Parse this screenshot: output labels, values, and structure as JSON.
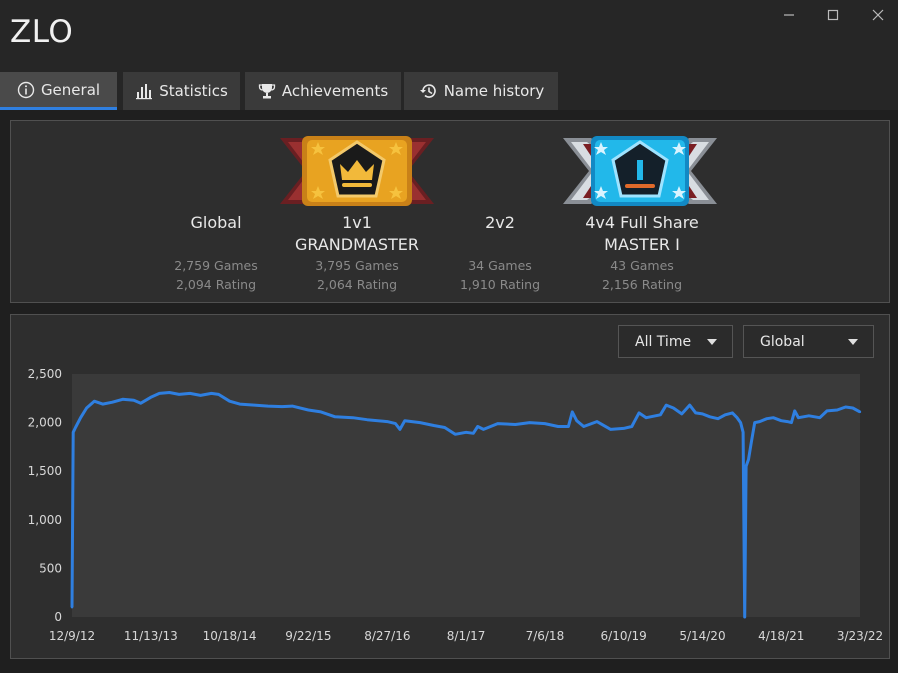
{
  "window": {
    "title": "ZLO"
  },
  "tabs": [
    {
      "label": "General",
      "icon": "info-icon",
      "active": true
    },
    {
      "label": "Statistics",
      "icon": "bar-chart-icon",
      "active": false
    },
    {
      "label": "Achievements",
      "icon": "trophy-icon",
      "active": false
    },
    {
      "label": "Name history",
      "icon": "history-icon",
      "active": false
    }
  ],
  "leaderboards": [
    {
      "name": "Global",
      "rank": "",
      "games": "2,759 Games",
      "rating": "2,094 Rating",
      "badge": ""
    },
    {
      "name": "1v1",
      "rank": "GRANDMASTER",
      "games": "3,795 Games",
      "rating": "2,064 Rating",
      "badge": "grandmaster-badge-icon"
    },
    {
      "name": "2v2",
      "rank": "",
      "games": "34 Games",
      "rating": "1,910 Rating",
      "badge": ""
    },
    {
      "name": "4v4 Full Share",
      "rank": "MASTER I",
      "games": "43 Games",
      "rating": "2,156 Rating",
      "badge": "master-badge-icon"
    }
  ],
  "filters": {
    "time_range": "All Time",
    "leaderboard": "Global"
  },
  "colors": {
    "line": "#2f7fe0",
    "tab_accent": "#2f7fe0",
    "gold": "#e8a321",
    "cyan": "#22b8ea"
  },
  "chart_data": {
    "type": "line",
    "title": "",
    "xlabel": "",
    "ylabel": "",
    "ylim": [
      0,
      2500
    ],
    "yticks": [
      "0",
      "500",
      "1,000",
      "1,500",
      "2,000",
      "2,500"
    ],
    "xticks": [
      "12/9/12",
      "11/13/13",
      "10/18/14",
      "9/22/15",
      "8/27/16",
      "8/1/17",
      "7/6/18",
      "6/10/19",
      "5/14/20",
      "4/18/21",
      "3/23/22"
    ],
    "grid": false,
    "series": [
      {
        "points": [
          [
            "12/9/12",
            100
          ],
          [
            "12/14/12",
            1900
          ],
          [
            "12/24/12",
            1950
          ],
          [
            "1/15/13",
            2050
          ],
          [
            "2/10/13",
            2150
          ],
          [
            "3/15/13",
            2220
          ],
          [
            "4/20/13",
            2190
          ],
          [
            "6/1/13",
            2210
          ],
          [
            "7/15/13",
            2240
          ],
          [
            "9/1/13",
            2230
          ],
          [
            "10/1/13",
            2200
          ],
          [
            "11/13/13",
            2260
          ],
          [
            "12/20/13",
            2300
          ],
          [
            "2/1/14",
            2310
          ],
          [
            "3/15/14",
            2290
          ],
          [
            "5/1/14",
            2300
          ],
          [
            "6/15/14",
            2280
          ],
          [
            "8/1/14",
            2300
          ],
          [
            "9/1/14",
            2290
          ],
          [
            "10/18/14",
            2220
          ],
          [
            "12/1/14",
            2190
          ],
          [
            "2/1/15",
            2180
          ],
          [
            "4/1/15",
            2170
          ],
          [
            "6/1/15",
            2165
          ],
          [
            "7/15/15",
            2170
          ],
          [
            "9/22/15",
            2130
          ],
          [
            "11/15/15",
            2110
          ],
          [
            "1/15/16",
            2060
          ],
          [
            "4/1/16",
            2050
          ],
          [
            "6/1/16",
            2030
          ],
          [
            "8/27/16",
            2010
          ],
          [
            "10/1/16",
            1990
          ],
          [
            "10/20/16",
            1930
          ],
          [
            "11/10/16",
            2020
          ],
          [
            "1/15/17",
            2000
          ],
          [
            "3/15/17",
            1970
          ],
          [
            "5/1/17",
            1950
          ],
          [
            "6/15/17",
            1880
          ],
          [
            "8/1/17",
            1900
          ],
          [
            "9/1/17",
            1890
          ],
          [
            "9/20/17",
            1960
          ],
          [
            "10/15/17",
            1930
          ],
          [
            "12/15/17",
            1990
          ],
          [
            "3/1/18",
            1980
          ],
          [
            "5/1/18",
            2000
          ],
          [
            "7/6/18",
            1990
          ],
          [
            "9/1/18",
            1960
          ],
          [
            "10/15/18",
            1960
          ],
          [
            "11/1/18",
            2110
          ],
          [
            "11/20/18",
            2020
          ],
          [
            "12/20/18",
            1960
          ],
          [
            "2/15/19",
            2010
          ],
          [
            "4/15/19",
            1930
          ],
          [
            "6/10/19",
            1940
          ],
          [
            "7/15/19",
            1960
          ],
          [
            "8/15/19",
            2100
          ],
          [
            "9/15/19",
            2050
          ],
          [
            "11/15/19",
            2080
          ],
          [
            "12/10/19",
            2180
          ],
          [
            "1/10/20",
            2150
          ],
          [
            "2/15/20",
            2090
          ],
          [
            "3/20/20",
            2180
          ],
          [
            "4/15/20",
            2100
          ],
          [
            "5/14/20",
            2090
          ],
          [
            "6/15/20",
            2060
          ],
          [
            "7/20/20",
            2040
          ],
          [
            "8/20/20",
            2080
          ],
          [
            "9/20/20",
            2100
          ],
          [
            "10/10/20",
            2050
          ],
          [
            "10/25/20",
            2000
          ],
          [
            "11/5/20",
            1900
          ],
          [
            "11/12/20",
            0
          ],
          [
            "11/18/20",
            1550
          ],
          [
            "11/28/20",
            1620
          ],
          [
            "12/10/20",
            1790
          ],
          [
            "12/25/20",
            2000
          ],
          [
            "1/15/21",
            2010
          ],
          [
            "2/15/21",
            2040
          ],
          [
            "3/15/21",
            2050
          ],
          [
            "4/18/21",
            2020
          ],
          [
            "5/15/21",
            2010
          ],
          [
            "6/1/21",
            2000
          ],
          [
            "6/15/21",
            2120
          ],
          [
            "7/1/21",
            2050
          ],
          [
            "8/15/21",
            2070
          ],
          [
            "10/1/21",
            2050
          ],
          [
            "11/1/21",
            2120
          ],
          [
            "12/15/21",
            2130
          ],
          [
            "1/20/22",
            2160
          ],
          [
            "2/20/22",
            2150
          ],
          [
            "3/23/22",
            2110
          ]
        ]
      }
    ]
  }
}
